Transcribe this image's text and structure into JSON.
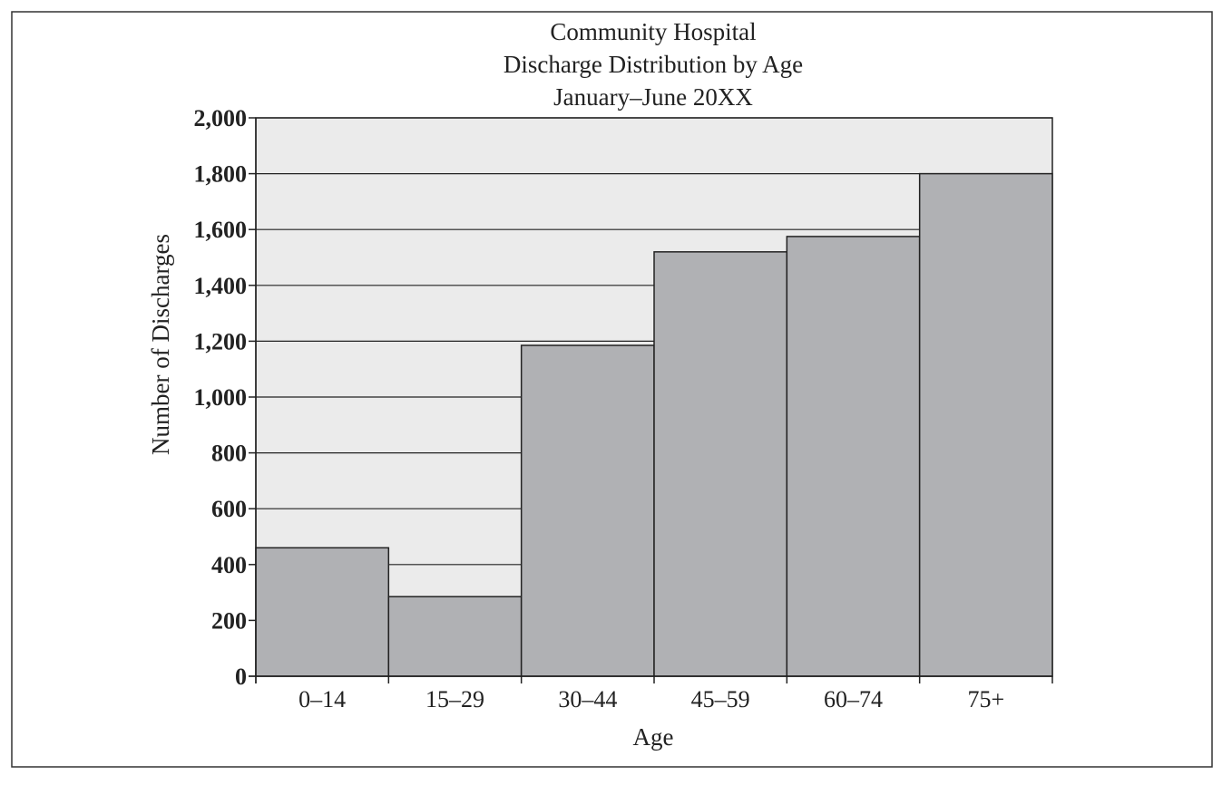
{
  "chart_data": {
    "type": "bar",
    "title": [
      "Community Hospital",
      "Discharge Distribution by Age",
      "January–June 20XX"
    ],
    "xlabel": "Age",
    "ylabel": "Number of Discharges",
    "categories": [
      "0–14",
      "15–29",
      "30–44",
      "45–59",
      "60–74",
      "75+"
    ],
    "values": [
      460,
      285,
      1185,
      1520,
      1575,
      1800
    ],
    "ylim": [
      0,
      2000
    ],
    "yticks": [
      0,
      200,
      400,
      600,
      800,
      1000,
      1200,
      1400,
      1600,
      1800,
      2000
    ],
    "ytick_labels": [
      "0",
      "200",
      "400",
      "600",
      "800",
      "1,000",
      "1,200",
      "1,400",
      "1,600",
      "1,800",
      "2,000"
    ],
    "grid": true,
    "colors": {
      "plot_background": "#ebebeb",
      "bar_fill": "#b0b1b4",
      "bar_stroke": "#222222",
      "grid": "#222222"
    }
  }
}
